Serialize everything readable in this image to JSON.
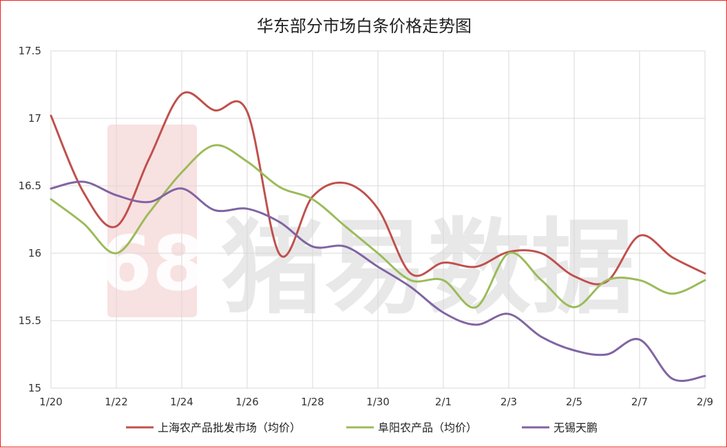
{
  "chart_data": {
    "type": "line",
    "title": "华东部分市场白条价格走势图",
    "xlabel": "",
    "ylabel": "",
    "x": [
      "1/20",
      "1/21",
      "1/22",
      "1/23",
      "1/24",
      "1/25",
      "1/26",
      "1/27",
      "1/28",
      "1/29",
      "1/30",
      "1/31",
      "2/1",
      "2/2",
      "2/3",
      "2/4",
      "2/5",
      "2/6",
      "2/7",
      "2/8",
      "2/9"
    ],
    "x_tick_labels": [
      "1/20",
      "1/22",
      "1/24",
      "1/26",
      "1/28",
      "1/30",
      "2/1",
      "2/3",
      "2/5",
      "2/7",
      "2/9"
    ],
    "ylim": [
      15,
      17.5
    ],
    "y_ticks": [
      15,
      15.5,
      16,
      16.5,
      17,
      17.5
    ],
    "y_tick_labels": [
      "15",
      "15.5",
      "16",
      "16.5",
      "17",
      "17.5"
    ],
    "grid": "vertical and horizontal",
    "legend": "bottom",
    "series": [
      {
        "name": "上海农产品批发市场（均价）",
        "color": "#c0504d",
        "values": [
          17.02,
          16.45,
          16.2,
          16.7,
          17.18,
          17.06,
          17.05,
          15.99,
          16.42,
          16.52,
          16.33,
          15.85,
          15.93,
          15.9,
          16.01,
          16.0,
          15.83,
          15.79,
          16.13,
          15.97,
          15.85
        ]
      },
      {
        "name": "阜阳农产品（均价）",
        "color": "#9bbb59",
        "values": [
          16.4,
          16.22,
          16.0,
          16.3,
          16.6,
          16.8,
          16.68,
          16.49,
          16.4,
          16.2,
          16.0,
          15.8,
          15.8,
          15.6,
          16.0,
          15.8,
          15.6,
          15.8,
          15.8,
          15.7,
          15.8
        ]
      },
      {
        "name": "无锡天鹏",
        "color": "#8064a2",
        "values": [
          16.48,
          16.53,
          16.43,
          16.38,
          16.48,
          16.32,
          16.33,
          16.23,
          16.05,
          16.05,
          15.9,
          15.75,
          15.56,
          15.47,
          15.55,
          15.38,
          15.28,
          15.25,
          15.36,
          15.07,
          15.09
        ]
      }
    ]
  },
  "watermark": {
    "text": "猪易数据",
    "logo_text": "68",
    "color": "#e8a0a0"
  }
}
